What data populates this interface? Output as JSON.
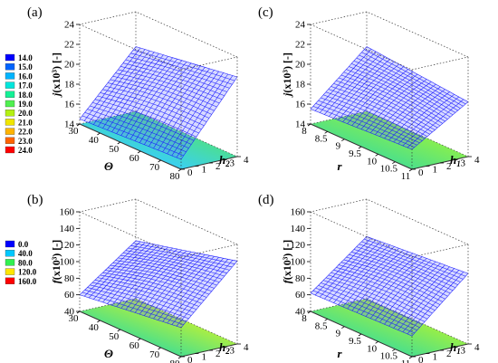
{
  "chart_data": [
    {
      "type": "surface",
      "panel_label": "(a)",
      "zlabel_base": "j",
      "zlabel_unit": "(x10³) [-]",
      "x": {
        "label": "Θ",
        "ticks": [
          "30",
          "40",
          "50",
          "60",
          "70",
          "80"
        ],
        "range": [
          30,
          80
        ]
      },
      "y": {
        "label": "h",
        "label_sub": "2",
        "ticks": [
          "0",
          "1",
          "2",
          "3",
          "4"
        ],
        "range": [
          0,
          4
        ]
      },
      "z": {
        "ticks": [
          "14",
          "16",
          "18",
          "20",
          "22",
          "24"
        ],
        "range": [
          14,
          24
        ]
      },
      "surface_corners": {
        "x_min_y_min": 14.5,
        "x_max_y_min": 15.0,
        "x_min_y_max": 20.5,
        "x_max_y_max": 22.0
      },
      "projection_colors": [
        "#0a8cff",
        "#3ad0f0",
        "#4de08a",
        "#c8f03c"
      ]
    },
    {
      "type": "surface",
      "panel_label": "(c)",
      "zlabel_base": "j",
      "zlabel_unit": "(x10³) [-]",
      "x": {
        "label": "r",
        "ticks": [
          "8",
          "8.5",
          "9",
          "9.5",
          "10",
          "10.5",
          "11"
        ],
        "range": [
          8,
          11
        ]
      },
      "y": {
        "label": "h",
        "label_sub": "1",
        "ticks": [
          "0",
          "1",
          "2",
          "3",
          "4"
        ],
        "range": [
          0,
          4
        ]
      },
      "z": {
        "ticks": [
          "14",
          "16",
          "18",
          "20",
          "22",
          "24"
        ],
        "range": [
          14,
          24
        ]
      },
      "surface_corners": {
        "x_min_y_min": 15.5,
        "x_max_y_min": 16.0,
        "x_min_y_max": 20.5,
        "x_max_y_max": 19.5
      },
      "projection_colors": [
        "#3ad0f0",
        "#4de08a",
        "#8cf04a",
        "#4de08a"
      ]
    },
    {
      "type": "surface",
      "panel_label": "(b)",
      "zlabel_base": "f",
      "zlabel_unit": "(x10³) [-]",
      "x": {
        "label": "Θ",
        "ticks": [
          "30",
          "40",
          "50",
          "60",
          "70",
          "80"
        ],
        "range": [
          30,
          80
        ]
      },
      "y": {
        "label": "h",
        "label_sub": "2",
        "ticks": [
          "0",
          "1",
          "2",
          "3",
          "4"
        ],
        "range": [
          0,
          4
        ]
      },
      "z": {
        "ticks": [
          "40",
          "60",
          "80",
          "100",
          "120",
          "140",
          "160"
        ],
        "range": [
          40,
          160
        ]
      },
      "surface_corners": {
        "x_min_y_min": 60,
        "x_max_y_min": 75,
        "x_min_y_max": 110,
        "x_max_y_max": 140
      },
      "projection_colors": [
        "#3ad0a0",
        "#4de08a",
        "#b4f03c",
        "#f0e040"
      ]
    },
    {
      "type": "surface",
      "panel_label": "(d)",
      "zlabel_base": "f",
      "zlabel_unit": "(x10³) [-]",
      "x": {
        "label": "r",
        "ticks": [
          "8",
          "8.5",
          "9",
          "9.5",
          "10",
          "10.5",
          "11"
        ],
        "range": [
          8,
          11
        ]
      },
      "y": {
        "label": "h",
        "label_sub": "1",
        "ticks": [
          "0",
          "1",
          "2",
          "3",
          "4"
        ],
        "range": [
          0,
          4
        ]
      },
      "z": {
        "ticks": [
          "40",
          "60",
          "80",
          "100",
          "120",
          "140",
          "160"
        ],
        "range": [
          40,
          160
        ]
      },
      "surface_corners": {
        "x_min_y_min": 62,
        "x_max_y_min": 65,
        "x_min_y_max": 115,
        "x_max_y_max": 125
      },
      "projection_colors": [
        "#3ad0a0",
        "#4de08a",
        "#a0f040",
        "#e8f040"
      ]
    }
  ],
  "legends": [
    {
      "entries": [
        {
          "label": "14.0",
          "color": "#0000ff"
        },
        {
          "label": "15.0",
          "color": "#0064ff"
        },
        {
          "label": "16.0",
          "color": "#00b4ff"
        },
        {
          "label": "17.0",
          "color": "#00e6dc"
        },
        {
          "label": "18.0",
          "color": "#14f096"
        },
        {
          "label": "19.0",
          "color": "#50f050"
        },
        {
          "label": "20.0",
          "color": "#b4f014"
        },
        {
          "label": "21.0",
          "color": "#f0e600"
        },
        {
          "label": "22.0",
          "color": "#ffb400"
        },
        {
          "label": "23.0",
          "color": "#ff6400"
        },
        {
          "label": "24.0",
          "color": "#ff0000"
        }
      ]
    },
    {
      "entries": [
        {
          "label": "0.0",
          "color": "#0000ff"
        },
        {
          "label": "40.0",
          "color": "#00c8ff"
        },
        {
          "label": "80.0",
          "color": "#32f050"
        },
        {
          "label": "120.0",
          "color": "#ffe600"
        },
        {
          "label": "160.0",
          "color": "#ff0000"
        }
      ]
    }
  ]
}
